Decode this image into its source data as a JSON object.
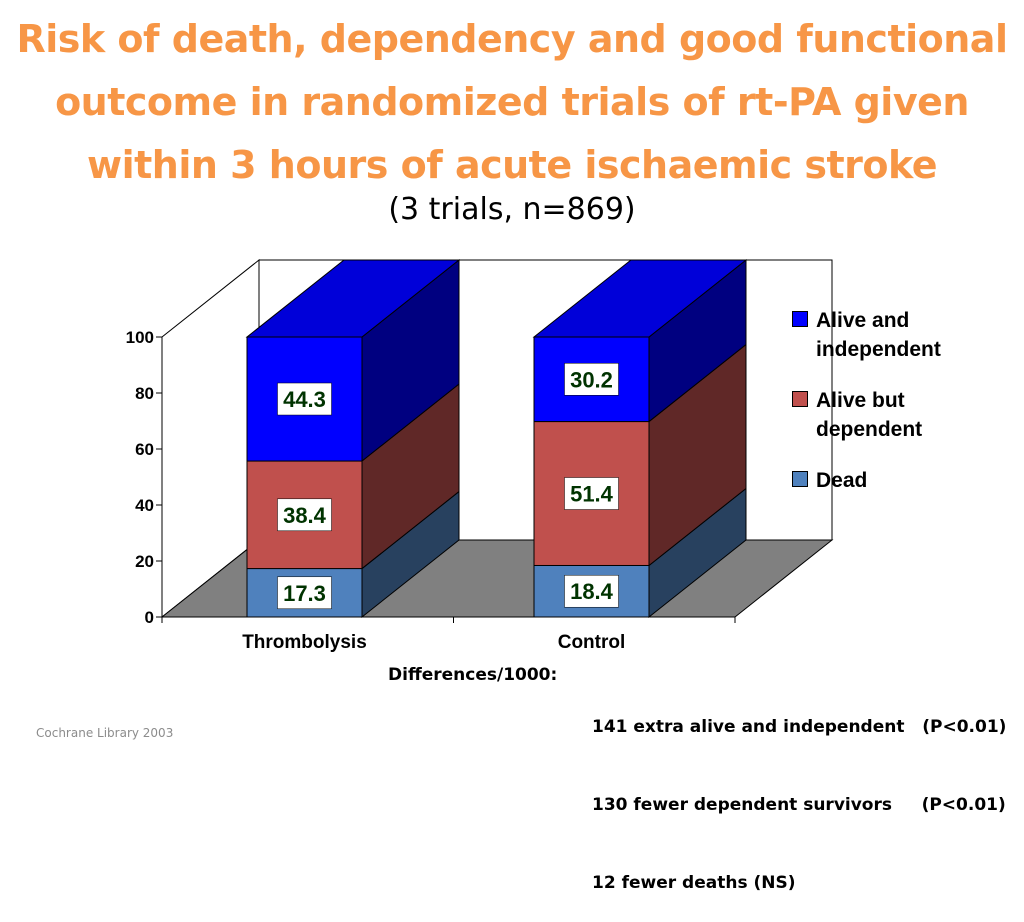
{
  "slide": {
    "title_lines": [
      "Risk of death, dependency and good functional",
      "outcome in randomized trials of rt-PA given",
      "within 3 hours of acute ischaemic stroke"
    ],
    "subtitle": "(3 trials, n=869)",
    "differences_label": "Differences/1000:",
    "differences": [
      "141 extra alive and independent   (P<0.01)",
      "130 fewer dependent survivors     (P<0.01)",
      "12 fewer deaths (NS)"
    ],
    "source": "Cochrane Library 2003"
  },
  "colors": {
    "title": "#f79646",
    "alive_independent": "#0000ff",
    "alive_dependent": "#c0504d",
    "dead": "#4f81bd",
    "floor": "#808080",
    "label_text": "#003300"
  },
  "chart_data": {
    "type": "bar",
    "stacked": true,
    "three_d": true,
    "categories": [
      "Thrombolysis",
      "Control"
    ],
    "series": [
      {
        "name": "Dead",
        "values": [
          17.3,
          18.4
        ],
        "color": "#4f81bd"
      },
      {
        "name": "Alive but dependent",
        "values": [
          38.4,
          51.4
        ],
        "color": "#c0504d"
      },
      {
        "name": "Alive and independent",
        "values": [
          44.3,
          30.2
        ],
        "color": "#0000ff"
      }
    ],
    "legend_order": [
      "Alive and independent",
      "Alive but dependent",
      "Dead"
    ],
    "y_ticks": [
      0,
      20,
      40,
      60,
      80,
      100
    ],
    "ylim": [
      0,
      100
    ],
    "legend_position": "right"
  }
}
